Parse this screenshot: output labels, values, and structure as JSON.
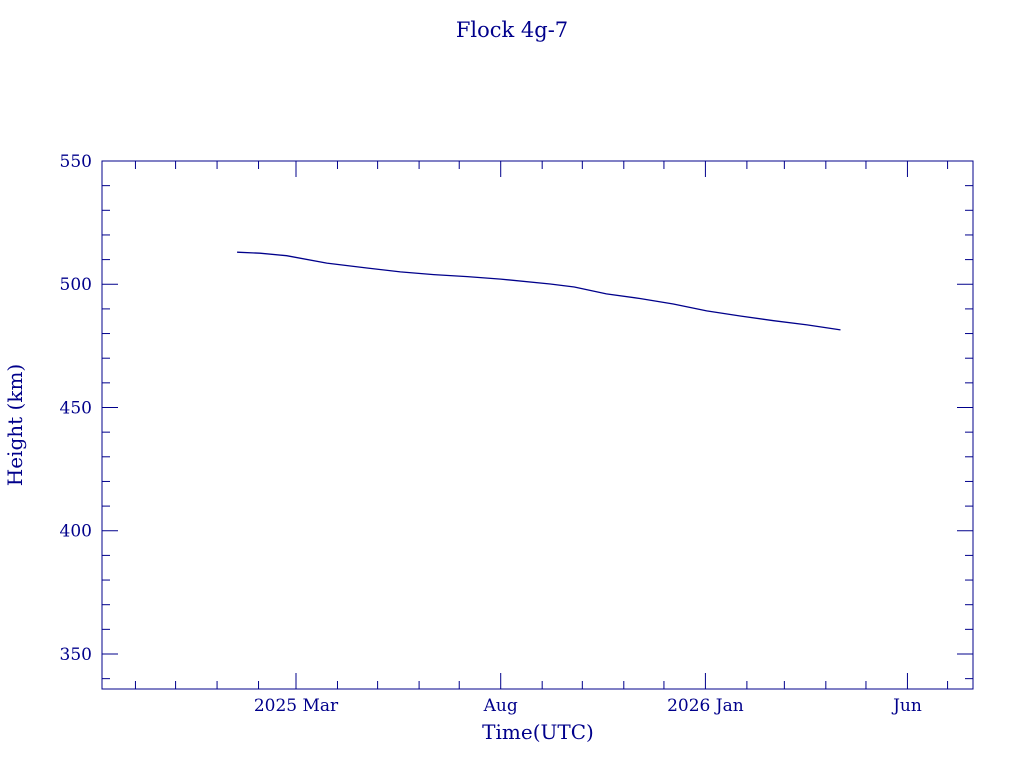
{
  "chart_data": {
    "type": "line",
    "title": "Flock 4g-7",
    "xlabel": "Time(UTC)",
    "ylabel": "Height (km)",
    "xlim": [
      "2024-10-07",
      "2026-07-20"
    ],
    "ylim": [
      335.8,
      550
    ],
    "x_tick_labels": [
      {
        "date": "2025-03-01",
        "label": "2025 Mar"
      },
      {
        "date": "2025-08-01",
        "label": "Aug"
      },
      {
        "date": "2026-01-01",
        "label": "2026 Jan"
      },
      {
        "date": "2026-06-01",
        "label": "Jun"
      }
    ],
    "y_ticks": [
      350,
      400,
      450,
      500,
      550
    ],
    "y_minor_step": 10,
    "x_minor": "monthly",
    "grid": false,
    "color": "#00008b",
    "series": [
      {
        "x": [
          "2025-01-16",
          "2025-02-02",
          "2025-02-22",
          "2025-03-24",
          "2025-04-23",
          "2025-05-18",
          "2025-06-12",
          "2025-07-07",
          "2025-08-01",
          "2025-09-07",
          "2025-09-25",
          "2025-10-19",
          "2025-11-13",
          "2025-12-08",
          "2026-01-02",
          "2026-01-27",
          "2026-02-21",
          "2026-03-18",
          "2026-04-12"
        ],
        "y": [
          513.0,
          512.6,
          511.6,
          508.6,
          506.6,
          505.0,
          503.9,
          503.1,
          502.1,
          500.1,
          498.9,
          496.1,
          494.2,
          492.0,
          489.2,
          487.1,
          485.2,
          483.5,
          481.5
        ]
      }
    ]
  }
}
